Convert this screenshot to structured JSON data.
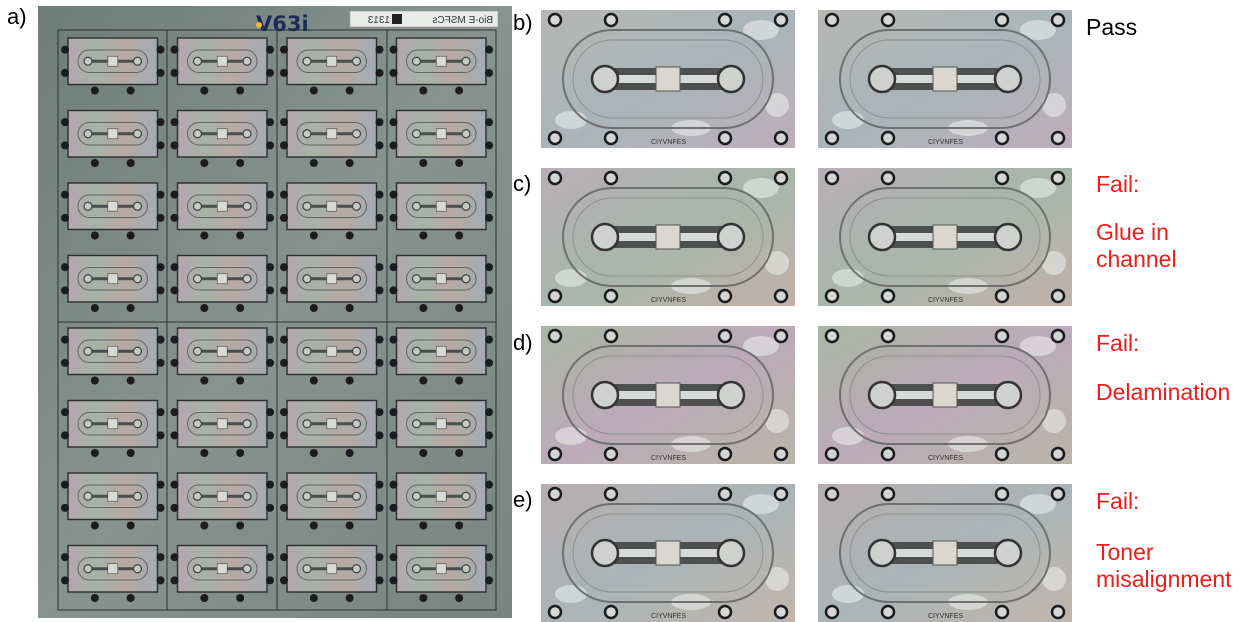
{
  "panel_labels": [
    "a)",
    "b)",
    "c)",
    "d)",
    "e)"
  ],
  "sheet": {
    "code": "V63i",
    "tag_label": "Bio-E MSFCs",
    "tag_number": "1313",
    "tag_number_mirrored": true,
    "grid": {
      "columns": 4,
      "rows": 8
    }
  },
  "chip_text": "CIYVNFES",
  "rows": [
    {
      "label": "b)",
      "result": "Pass",
      "result_color": "#000000",
      "detail_lines": []
    },
    {
      "label": "c)",
      "result": "Fail:",
      "result_color": "#ee1c1c",
      "detail_lines": [
        "Glue in",
        "channel"
      ]
    },
    {
      "label": "d)",
      "result": "Fail:",
      "result_color": "#ee1c1c",
      "detail_lines": [
        "Delamination"
      ]
    },
    {
      "label": "e)",
      "result": "Fail:",
      "result_color": "#ee1c1c",
      "detail_lines": [
        "Toner",
        "misalignment"
      ]
    }
  ],
  "colors": {
    "sheet_base": "#7d8a86",
    "chip_base": "#a4aaa6",
    "hole": "#1b1c1f",
    "fail_text": "#ee1c1c"
  }
}
